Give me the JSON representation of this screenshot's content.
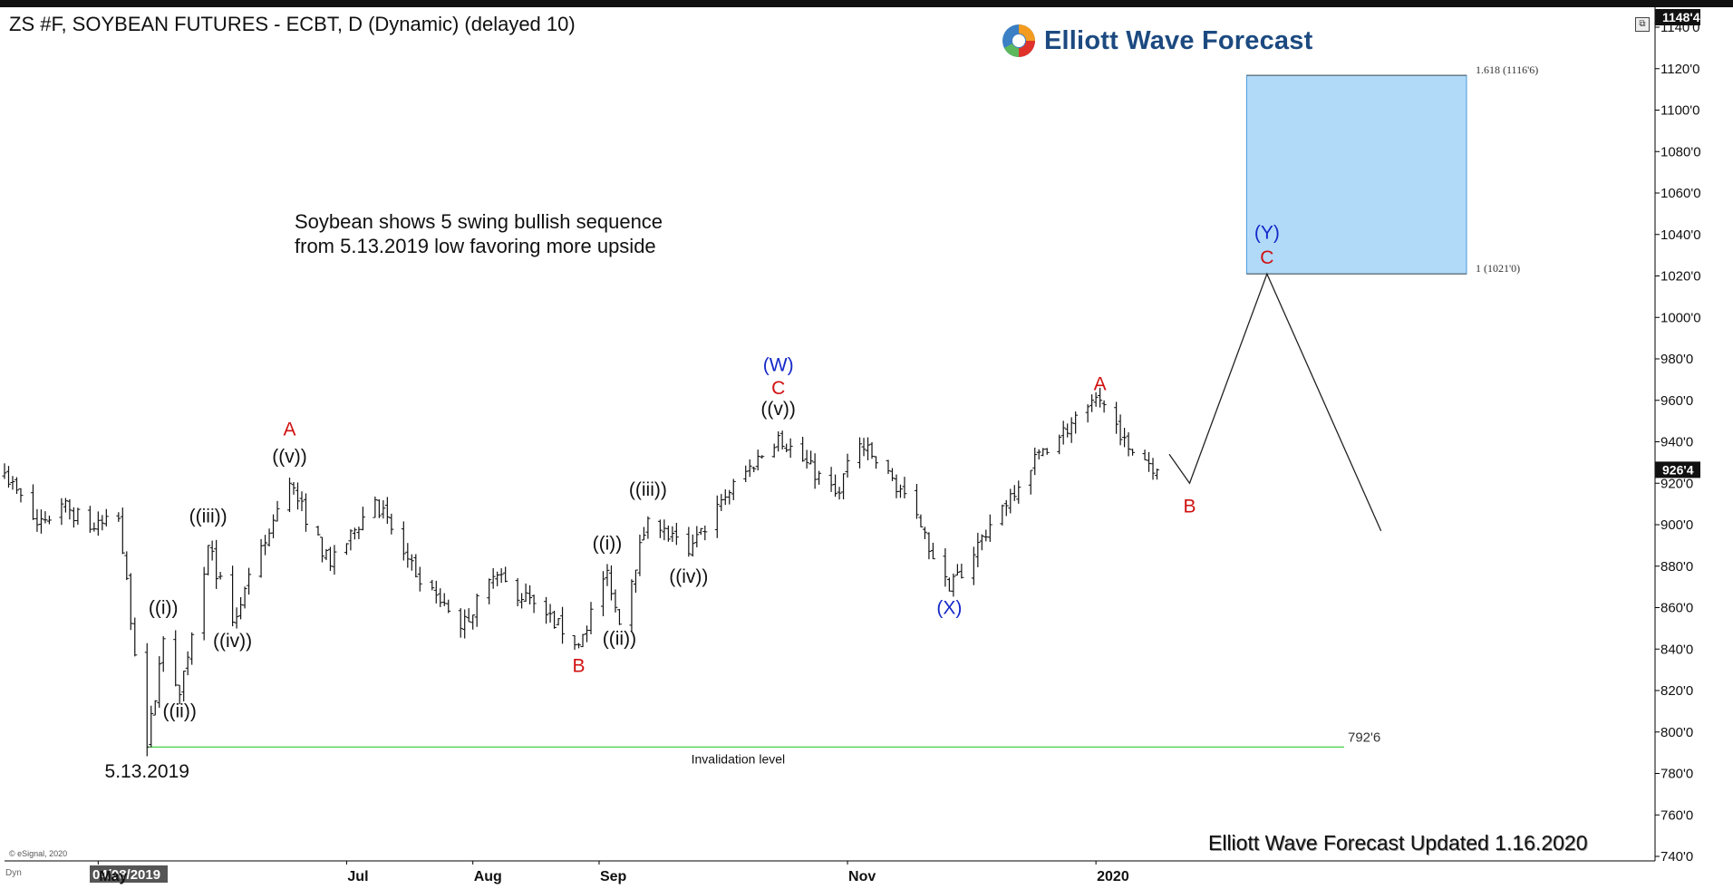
{
  "header": {
    "title": "ZS #F, SOYBEAN FUTURES - ECBT, D (Dynamic) (delayed 10)",
    "logo_text": "Elliott Wave Forecast",
    "current_price_label": "926'4",
    "top_price_label": "1148'4"
  },
  "annotations": {
    "note_line1": "Soybean shows 5 swing bullish sequence",
    "note_line2": "from 5.13.2019 low favoring more upside",
    "updated": "Elliott Wave Forecast Updated 1.16.2020",
    "copyright": "© eSignal, 2020",
    "dyn": "Dyn",
    "low_date": "5.13.2019",
    "invalidation_label": "Invalidation level",
    "invalidation_value": "792'6",
    "target_ext_1618": "1.618 (1116'6)",
    "target_ext_1": "1 (1021'0)",
    "x_axis_start_label": "04/08/2019"
  },
  "colors": {
    "wave_black": "#111111",
    "wave_red": "#d01010",
    "wave_blue": "#1428c8",
    "target_box": "#b1daf9",
    "invalidation_line": "#33cc33",
    "logo_blue": "#1c4a80"
  },
  "chart_data": {
    "type": "bar",
    "style": "ohlc",
    "ylim": [
      733,
      1148
    ],
    "y_ticks": [
      "1140'0",
      "1120'0",
      "1100'0",
      "1080'0",
      "1060'0",
      "1040'0",
      "1020'0",
      "1000'0",
      "980'0",
      "960'0",
      "940'0",
      "920'0",
      "900'0",
      "880'0",
      "860'0",
      "840'0",
      "820'0",
      "800'0",
      "780'0",
      "760'0",
      "740'0"
    ],
    "y_tick_values": [
      1140,
      1120,
      1100,
      1080,
      1060,
      1040,
      1020,
      1000,
      980,
      960,
      940,
      920,
      900,
      880,
      860,
      840,
      820,
      800,
      780,
      760,
      740
    ],
    "x_ticks": [
      "May",
      "Jul",
      "Aug",
      "Sep",
      "Nov",
      "2020"
    ],
    "x_tick_dates": [
      "2019-05-01",
      "2019-07-01",
      "2019-08-01",
      "2019-09-01",
      "2019-11-01",
      "2020-01-01"
    ],
    "anchors": [
      {
        "date": "2019-04-08",
        "value": 925
      },
      {
        "date": "2019-04-16",
        "value": 900
      },
      {
        "date": "2019-04-22",
        "value": 910
      },
      {
        "date": "2019-04-30",
        "value": 898
      },
      {
        "date": "2019-05-06",
        "value": 903
      },
      {
        "date": "2019-05-13",
        "value": 792.75
      },
      {
        "date": "2019-05-17",
        "value": 845
      },
      {
        "date": "2019-05-21",
        "value": 818
      },
      {
        "date": "2019-05-28",
        "value": 890
      },
      {
        "date": "2019-06-03",
        "value": 853
      },
      {
        "date": "2019-06-17",
        "value": 920
      },
      {
        "date": "2019-06-27",
        "value": 880
      },
      {
        "date": "2019-07-08",
        "value": 912
      },
      {
        "date": "2019-07-18",
        "value": 875
      },
      {
        "date": "2019-07-29",
        "value": 850
      },
      {
        "date": "2019-08-06",
        "value": 875
      },
      {
        "date": "2019-08-16",
        "value": 862
      },
      {
        "date": "2019-08-27",
        "value": 842
      },
      {
        "date": "2019-09-03",
        "value": 878
      },
      {
        "date": "2019-09-06",
        "value": 852
      },
      {
        "date": "2019-09-13",
        "value": 903
      },
      {
        "date": "2019-09-23",
        "value": 886
      },
      {
        "date": "2019-10-01",
        "value": 912
      },
      {
        "date": "2019-10-15",
        "value": 943
      },
      {
        "date": "2019-10-29",
        "value": 915
      },
      {
        "date": "2019-11-04",
        "value": 939
      },
      {
        "date": "2019-11-15",
        "value": 915
      },
      {
        "date": "2019-11-26",
        "value": 868
      },
      {
        "date": "2019-12-06",
        "value": 900
      },
      {
        "date": "2019-12-18",
        "value": 935
      },
      {
        "date": "2020-01-02",
        "value": 960
      },
      {
        "date": "2020-01-08",
        "value": 942
      },
      {
        "date": "2020-01-16",
        "value": 926.5
      }
    ],
    "projection": [
      {
        "date": "2020-01-19",
        "value": 934
      },
      {
        "date": "2020-01-24",
        "value": 920
      },
      {
        "date": "2020-02-12",
        "value": 1021
      },
      {
        "date": "2020-03-11",
        "value": 897
      }
    ],
    "target_zone": {
      "date_start": "2020-02-07",
      "date_end": "2020-04-01",
      "low": 1021,
      "high": 1116.75
    },
    "invalidation": {
      "date_start": "2019-05-13",
      "date_end": "2020-04-01",
      "value": 792.75
    },
    "wave_labels": [
      {
        "text": "5.13.2019",
        "date": "2019-05-13",
        "value": 778,
        "color": "black"
      },
      {
        "text": "((i))",
        "date": "2019-05-17",
        "value": 857,
        "color": "black"
      },
      {
        "text": "((ii))",
        "date": "2019-05-21",
        "value": 807,
        "color": "black"
      },
      {
        "text": "((iii))",
        "date": "2019-05-28",
        "value": 901,
        "color": "black"
      },
      {
        "text": "((iv))",
        "date": "2019-06-03",
        "value": 841,
        "color": "black"
      },
      {
        "text": "((v))",
        "date": "2019-06-17",
        "value": 930,
        "color": "black"
      },
      {
        "text": "A",
        "date": "2019-06-17",
        "value": 943,
        "color": "red"
      },
      {
        "text": "B",
        "date": "2019-08-27",
        "value": 829,
        "color": "red"
      },
      {
        "text": "((i))",
        "date": "2019-09-03",
        "value": 888,
        "color": "black"
      },
      {
        "text": "((ii))",
        "date": "2019-09-06",
        "value": 842,
        "color": "black"
      },
      {
        "text": "((iii))",
        "date": "2019-09-13",
        "value": 914,
        "color": "black"
      },
      {
        "text": "((iv))",
        "date": "2019-09-23",
        "value": 872,
        "color": "black"
      },
      {
        "text": "((v))",
        "date": "2019-10-15",
        "value": 953,
        "color": "black"
      },
      {
        "text": "C",
        "date": "2019-10-15",
        "value": 963,
        "color": "red"
      },
      {
        "text": "(W)",
        "date": "2019-10-15",
        "value": 974,
        "color": "blue"
      },
      {
        "text": "(X)",
        "date": "2019-11-26",
        "value": 857,
        "color": "blue"
      },
      {
        "text": "A",
        "date": "2020-01-02",
        "value": 965,
        "color": "red"
      },
      {
        "text": "B",
        "date": "2020-01-24",
        "value": 906,
        "color": "red"
      },
      {
        "text": "C",
        "date": "2020-02-12",
        "value": 1026,
        "color": "red"
      },
      {
        "text": "(Y)",
        "date": "2020-02-12",
        "value": 1038,
        "color": "blue"
      }
    ]
  }
}
